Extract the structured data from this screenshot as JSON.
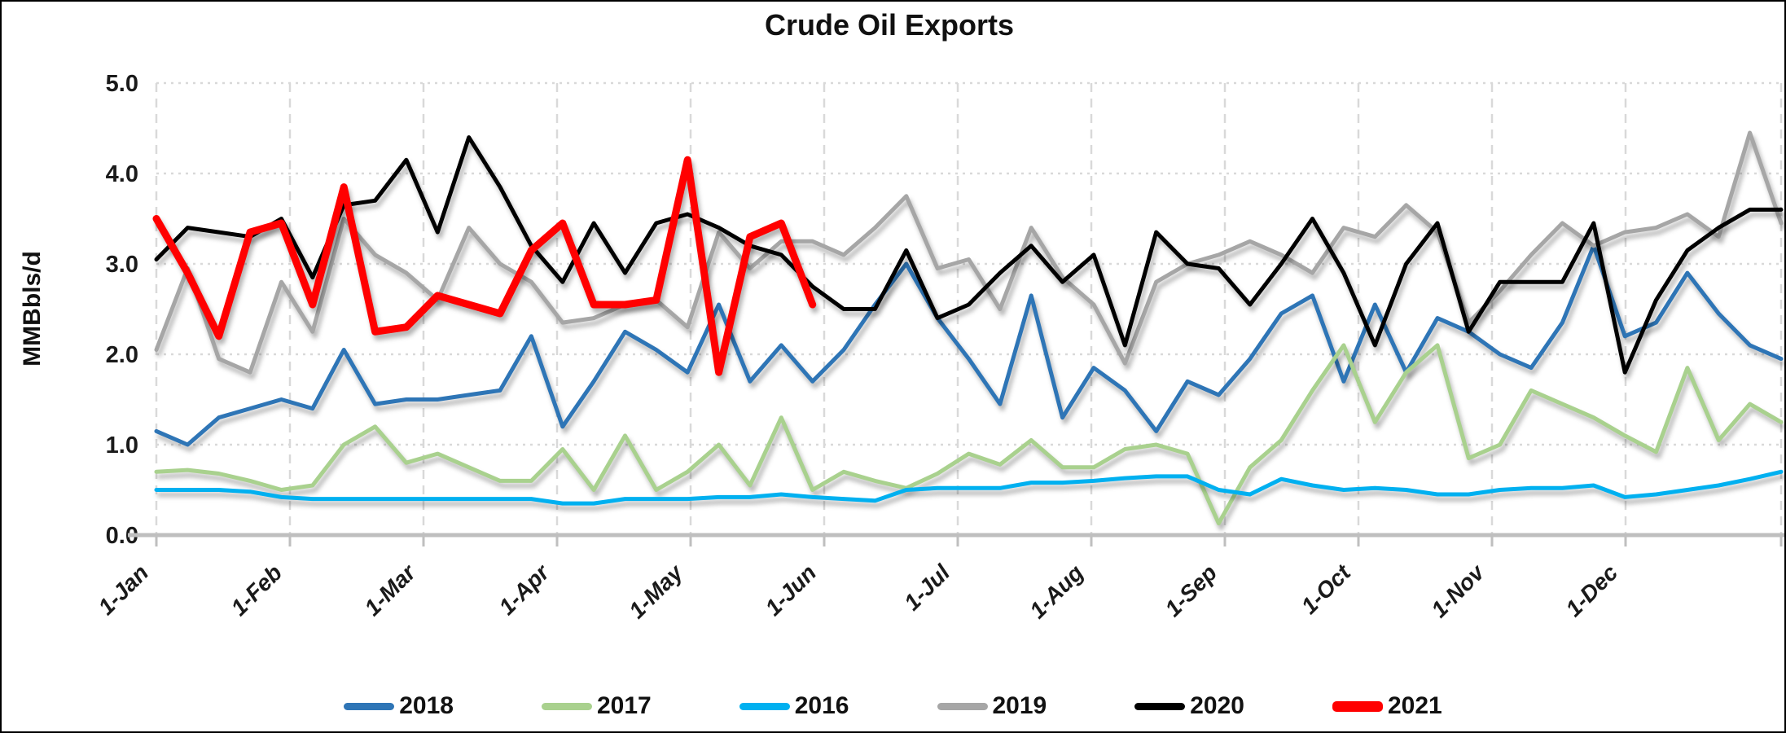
{
  "window": {
    "title": "Crude Oil Exports"
  },
  "chart_data": {
    "type": "line",
    "title": "Crude Oil Exports",
    "xlabel": "",
    "ylabel": "MMBbls/d",
    "ylim": [
      0.0,
      5.0
    ],
    "ytick_labels": [
      "5.0",
      "4.0",
      "3.0",
      "2.0",
      "1.0",
      "0.0"
    ],
    "ytick_values": [
      5.0,
      4.0,
      3.0,
      2.0,
      1.0,
      0.0
    ],
    "xtick_labels": [
      "1-Jan",
      "1-Feb",
      "1-Mar",
      "1-Apr",
      "1-May",
      "1-Jun",
      "1-Jul",
      "1-Aug",
      "1-Sep",
      "1-Oct",
      "1-Nov",
      "1-Dec"
    ],
    "x_unit": "week",
    "points_per_year": 53,
    "grid": true,
    "legend_position": "bottom",
    "series": [
      {
        "name": "2018",
        "color": "#2E75B6",
        "width": 5,
        "values": [
          1.15,
          1.0,
          1.3,
          1.4,
          1.5,
          1.4,
          2.05,
          1.45,
          1.5,
          1.5,
          1.55,
          1.6,
          2.2,
          1.2,
          1.7,
          2.25,
          2.05,
          1.8,
          2.55,
          1.7,
          2.1,
          1.7,
          2.05,
          2.55,
          3.0,
          2.4,
          1.95,
          1.45,
          2.65,
          1.3,
          1.85,
          1.6,
          1.15,
          1.7,
          1.55,
          1.95,
          2.45,
          2.65,
          1.7,
          2.55,
          1.8,
          2.4,
          2.25,
          2.0,
          1.85,
          2.35,
          3.2,
          2.2,
          2.35,
          2.9,
          2.45,
          2.1,
          1.95
        ]
      },
      {
        "name": "2017",
        "color": "#A9D18E",
        "width": 5,
        "values": [
          0.7,
          0.72,
          0.68,
          0.6,
          0.5,
          0.55,
          1.0,
          1.2,
          0.8,
          0.9,
          0.75,
          0.6,
          0.6,
          0.95,
          0.5,
          1.1,
          0.5,
          0.7,
          1.0,
          0.55,
          1.3,
          0.5,
          0.7,
          0.6,
          0.52,
          0.68,
          0.9,
          0.78,
          1.05,
          0.75,
          0.75,
          0.95,
          1.0,
          0.9,
          0.13,
          0.75,
          1.05,
          1.6,
          2.1,
          1.25,
          1.8,
          2.1,
          0.85,
          1.0,
          1.6,
          1.45,
          1.3,
          1.1,
          0.92,
          1.85,
          1.05,
          1.45,
          1.25
        ]
      },
      {
        "name": "2016",
        "color": "#00B0F0",
        "width": 5,
        "values": [
          0.5,
          0.5,
          0.5,
          0.48,
          0.42,
          0.4,
          0.4,
          0.4,
          0.4,
          0.4,
          0.4,
          0.4,
          0.4,
          0.35,
          0.35,
          0.4,
          0.4,
          0.4,
          0.42,
          0.42,
          0.45,
          0.42,
          0.4,
          0.38,
          0.5,
          0.52,
          0.52,
          0.52,
          0.58,
          0.58,
          0.6,
          0.63,
          0.65,
          0.65,
          0.5,
          0.45,
          0.62,
          0.55,
          0.5,
          0.52,
          0.5,
          0.45,
          0.45,
          0.5,
          0.52,
          0.52,
          0.55,
          0.42,
          0.45,
          0.5,
          0.55,
          0.62,
          0.7
        ]
      },
      {
        "name": "2019",
        "color": "#A6A6A6",
        "width": 5,
        "values": [
          2.05,
          2.95,
          1.95,
          1.8,
          2.8,
          2.25,
          3.5,
          3.1,
          2.9,
          2.6,
          3.4,
          3.0,
          2.8,
          2.35,
          2.4,
          2.55,
          2.6,
          2.3,
          3.35,
          2.95,
          3.25,
          3.25,
          3.1,
          3.4,
          3.75,
          2.95,
          3.05,
          2.5,
          3.4,
          2.85,
          2.55,
          1.9,
          2.8,
          3.0,
          3.1,
          3.25,
          3.1,
          2.9,
          3.4,
          3.3,
          3.65,
          3.35,
          2.35,
          2.7,
          3.1,
          3.45,
          3.2,
          3.35,
          3.4,
          3.55,
          3.3,
          4.45,
          3.45
        ]
      },
      {
        "name": "2020",
        "color": "#000000",
        "width": 5,
        "values": [
          3.05,
          3.4,
          3.35,
          3.3,
          3.5,
          2.85,
          3.65,
          3.7,
          4.15,
          3.35,
          4.4,
          3.85,
          3.2,
          2.8,
          3.45,
          2.9,
          3.45,
          3.55,
          3.4,
          3.2,
          3.1,
          2.75,
          2.5,
          2.5,
          3.15,
          2.4,
          2.55,
          2.9,
          3.2,
          2.8,
          3.1,
          2.1,
          3.35,
          3.0,
          2.95,
          2.55,
          3.0,
          3.5,
          2.9,
          2.1,
          3.0,
          3.45,
          2.25,
          2.8,
          2.8,
          2.8,
          3.45,
          1.8,
          2.6,
          3.15,
          3.4,
          3.6,
          3.6
        ]
      },
      {
        "name": "2021",
        "color": "#FF0000",
        "width": 9,
        "values": [
          3.5,
          2.9,
          2.2,
          3.35,
          3.45,
          2.55,
          3.85,
          2.25,
          2.3,
          2.65,
          2.55,
          2.45,
          3.15,
          3.45,
          2.55,
          2.55,
          2.6,
          4.15,
          1.8,
          3.3,
          3.45,
          2.55
        ]
      }
    ]
  }
}
